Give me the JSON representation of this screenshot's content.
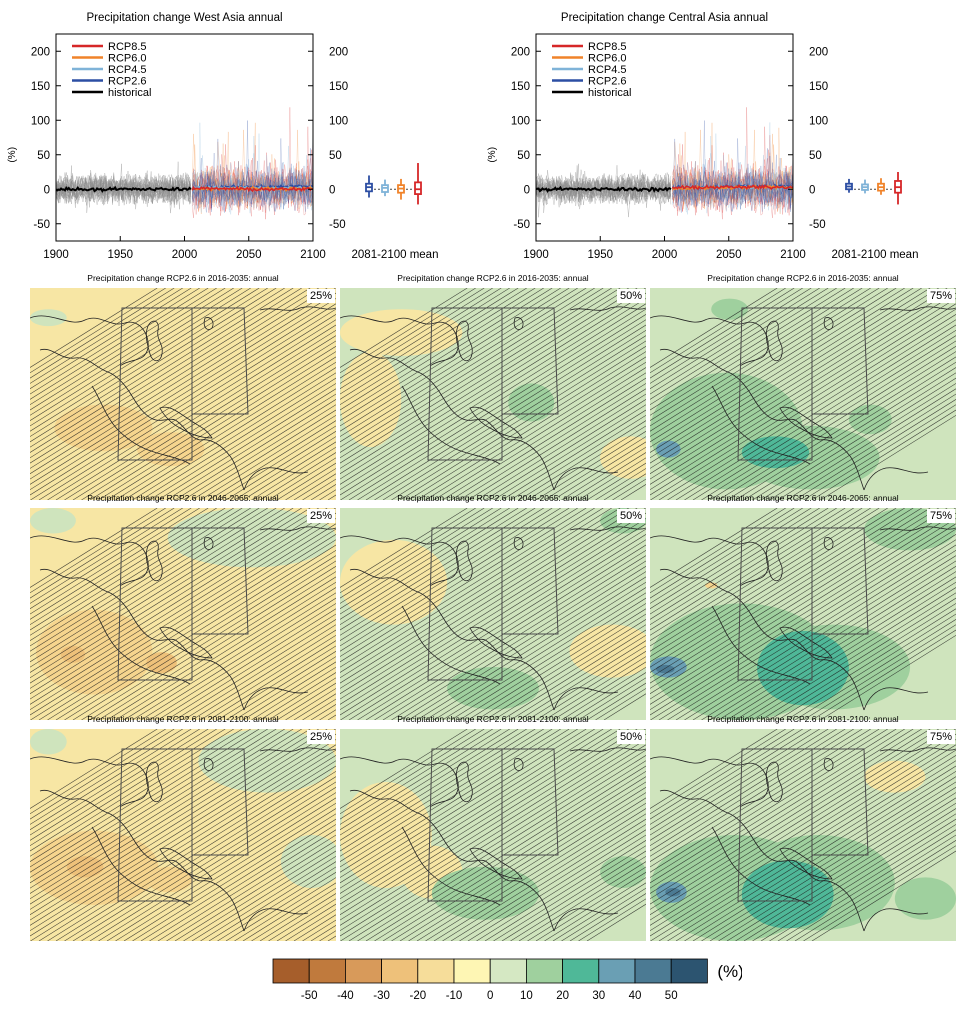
{
  "colors": {
    "RCP8.5": "#d62728",
    "RCP6.0": "#f0832a",
    "RCP4.5": "#7fb3d8",
    "RCP2.6": "#2c4ea3",
    "historical": "#000000",
    "ensemble_hist": "#8c8c8c",
    "border": "#4a4a4a"
  },
  "timeseries": [
    {
      "title": "Precipitation change West Asia annual",
      "ylabel": "(%)",
      "mean_label": "2081-2100 mean",
      "xticks": [
        "1900",
        "1950",
        "2000",
        "2050",
        "2100"
      ],
      "yticks_left": [
        "-50",
        "0",
        "50",
        "100",
        "150",
        "200"
      ],
      "yticks_right": [
        "-50",
        "0",
        "50",
        "100",
        "150",
        "200"
      ],
      "legend": [
        "RCP8.5",
        "RCP6.0",
        "RCP4.5",
        "RCP2.6",
        "historical"
      ],
      "boxes": [
        {
          "name": "RCP2.6",
          "min": -12,
          "q1": -3,
          "median": 3,
          "q3": 8,
          "max": 20
        },
        {
          "name": "RCP4.5",
          "min": -10,
          "q1": -4,
          "median": 2,
          "q3": 6,
          "max": 14
        },
        {
          "name": "RCP6.0",
          "min": -15,
          "q1": -5,
          "median": 1,
          "q3": 6,
          "max": 15
        },
        {
          "name": "RCP8.5",
          "min": -22,
          "q1": -7,
          "median": 0,
          "q3": 10,
          "max": 38
        }
      ]
    },
    {
      "title": "Precipitation change Central Asia annual",
      "ylabel": "(%)",
      "mean_label": "2081-2100 mean",
      "xticks": [
        "1900",
        "1950",
        "2000",
        "2050",
        "2100"
      ],
      "yticks_left": [
        "-50",
        "0",
        "50",
        "100",
        "150",
        "200"
      ],
      "yticks_right": [
        "-50",
        "0",
        "50",
        "100",
        "150",
        "200"
      ],
      "legend": [
        "RCP8.5",
        "RCP6.0",
        "RCP4.5",
        "RCP2.6",
        "historical"
      ],
      "boxes": [
        {
          "name": "RCP2.6",
          "min": -5,
          "q1": 0,
          "median": 4,
          "q3": 8,
          "max": 15
        },
        {
          "name": "RCP4.5",
          "min": -6,
          "q1": -1,
          "median": 3,
          "q3": 7,
          "max": 14
        },
        {
          "name": "RCP6.0",
          "min": -8,
          "q1": -2,
          "median": 3,
          "q3": 8,
          "max": 16
        },
        {
          "name": "RCP8.5",
          "min": -22,
          "q1": -5,
          "median": 3,
          "q3": 12,
          "max": 25
        }
      ]
    }
  ],
  "maps": [
    {
      "title": "Precipitation change RCP2.6 in 2016-2035: annual",
      "pct": "25%",
      "base": 2,
      "blobs": [
        [
          1,
          0.08,
          0.55,
          0.32,
          0.22
        ],
        [
          1,
          0.35,
          0.68,
          0.22,
          0.16
        ],
        [
          3,
          0.0,
          0.1,
          0.12,
          0.08
        ]
      ]
    },
    {
      "title": "Precipitation change RCP2.6 in 2016-2035: annual",
      "pct": "50%",
      "base": 3,
      "blobs": [
        [
          2,
          0.0,
          0.1,
          0.4,
          0.22
        ],
        [
          2,
          0.0,
          0.3,
          0.2,
          0.45
        ],
        [
          2,
          0.85,
          0.7,
          0.2,
          0.2
        ],
        [
          4,
          0.55,
          0.45,
          0.15,
          0.18
        ]
      ]
    },
    {
      "title": "Precipitation change RCP2.6 in 2016-2035: annual",
      "pct": "75%",
      "base": 3,
      "blobs": [
        [
          4,
          0.0,
          0.4,
          0.5,
          0.55
        ],
        [
          4,
          0.3,
          0.65,
          0.45,
          0.3
        ],
        [
          5,
          0.3,
          0.7,
          0.22,
          0.15
        ],
        [
          6,
          0.02,
          0.72,
          0.08,
          0.08
        ],
        [
          4,
          0.65,
          0.55,
          0.14,
          0.14
        ],
        [
          4,
          0.2,
          0.05,
          0.12,
          0.1
        ]
      ]
    },
    {
      "title": "Precipitation change RCP2.6 in 2046-2065: annual",
      "pct": "25%",
      "base": 2,
      "blobs": [
        [
          1,
          0.02,
          0.48,
          0.38,
          0.4
        ],
        [
          0,
          0.1,
          0.65,
          0.08,
          0.08
        ],
        [
          0,
          0.38,
          0.68,
          0.1,
          0.1
        ],
        [
          3,
          0.45,
          0.0,
          0.55,
          0.28
        ],
        [
          3,
          0.0,
          0.0,
          0.15,
          0.12
        ]
      ]
    },
    {
      "title": "Precipitation change RCP2.6 in 2046-2065: annual",
      "pct": "50%",
      "base": 3,
      "blobs": [
        [
          2,
          0.0,
          0.15,
          0.35,
          0.4
        ],
        [
          2,
          0.75,
          0.55,
          0.28,
          0.25
        ],
        [
          4,
          0.35,
          0.75,
          0.3,
          0.2
        ],
        [
          4,
          0.85,
          0.0,
          0.15,
          0.12
        ]
      ]
    },
    {
      "title": "Precipitation change RCP2.6 in 2046-2065: annual",
      "pct": "75%",
      "base": 3,
      "blobs": [
        [
          4,
          0.0,
          0.45,
          0.6,
          0.55
        ],
        [
          4,
          0.35,
          0.55,
          0.5,
          0.4
        ],
        [
          5,
          0.35,
          0.58,
          0.3,
          0.35
        ],
        [
          6,
          0.0,
          0.7,
          0.12,
          0.1
        ],
        [
          7,
          0.02,
          0.74,
          0.06,
          0.04
        ],
        [
          4,
          0.7,
          0.0,
          0.3,
          0.2
        ],
        [
          1,
          0.18,
          0.35,
          0.04,
          0.03
        ]
      ]
    },
    {
      "title": "Precipitation change RCP2.6 in 2081-2100: annual",
      "pct": "25%",
      "base": 2,
      "blobs": [
        [
          1,
          0.0,
          0.48,
          0.42,
          0.35
        ],
        [
          0,
          0.12,
          0.6,
          0.12,
          0.1
        ],
        [
          1,
          0.38,
          0.65,
          0.15,
          0.12
        ],
        [
          3,
          0.55,
          0.0,
          0.45,
          0.3
        ],
        [
          3,
          0.82,
          0.5,
          0.2,
          0.25
        ],
        [
          3,
          0.0,
          0.0,
          0.12,
          0.12
        ]
      ]
    },
    {
      "title": "Precipitation change RCP2.6 in 2081-2100: annual",
      "pct": "50%",
      "base": 3,
      "blobs": [
        [
          2,
          0.0,
          0.25,
          0.3,
          0.5
        ],
        [
          2,
          0.2,
          0.55,
          0.2,
          0.25
        ],
        [
          4,
          0.3,
          0.65,
          0.35,
          0.25
        ],
        [
          4,
          0.85,
          0.6,
          0.15,
          0.15
        ]
      ]
    },
    {
      "title": "Precipitation change RCP2.6 in 2081-2100: annual",
      "pct": "75%",
      "base": 3,
      "blobs": [
        [
          4,
          0.0,
          0.5,
          0.55,
          0.5
        ],
        [
          4,
          0.3,
          0.5,
          0.5,
          0.45
        ],
        [
          5,
          0.3,
          0.62,
          0.3,
          0.32
        ],
        [
          6,
          0.02,
          0.72,
          0.1,
          0.1
        ],
        [
          7,
          0.05,
          0.75,
          0.05,
          0.04
        ],
        [
          4,
          0.8,
          0.7,
          0.2,
          0.2
        ],
        [
          2,
          0.7,
          0.15,
          0.2,
          0.15
        ]
      ]
    }
  ],
  "colorbar": {
    "colors": [
      "#a65e2b",
      "#c07a3d",
      "#d89a5a",
      "#eec17a",
      "#f6dd9a",
      "#fef6b4",
      "#d5e8c3",
      "#9fd09e",
      "#4fb898",
      "#6a9fb4",
      "#4b7a93",
      "#2c5470"
    ],
    "labels": [
      "-50",
      "-40",
      "-30",
      "-20",
      "-10",
      "0",
      "10",
      "20",
      "30",
      "40",
      "50"
    ],
    "unit": "(%)"
  },
  "chart_data": [
    {
      "type": "line",
      "title": "Precipitation change West Asia annual",
      "ylabel": "(%)",
      "xlim": [
        1900,
        2100
      ],
      "ylim": [
        -75,
        225
      ],
      "series": [
        {
          "name": "historical",
          "x": [
            1900,
            1920,
            1940,
            1960,
            1980,
            2005
          ],
          "y": [
            0,
            0,
            0,
            0,
            0,
            0
          ]
        },
        {
          "name": "RCP2.6",
          "x": [
            2006,
            2030,
            2050,
            2070,
            2100
          ],
          "y": [
            2,
            3,
            3,
            4,
            4
          ]
        },
        {
          "name": "RCP4.5",
          "x": [
            2006,
            2030,
            2050,
            2070,
            2100
          ],
          "y": [
            2,
            2,
            2,
            2,
            2
          ]
        },
        {
          "name": "RCP6.0",
          "x": [
            2006,
            2030,
            2050,
            2070,
            2100
          ],
          "y": [
            1,
            1,
            1,
            1,
            1
          ]
        },
        {
          "name": "RCP8.5",
          "x": [
            2006,
            2030,
            2050,
            2070,
            2100
          ],
          "y": [
            1,
            1,
            0,
            0,
            0
          ]
        }
      ]
    },
    {
      "type": "line",
      "title": "Precipitation change Central Asia annual",
      "ylabel": "(%)",
      "xlim": [
        1900,
        2100
      ],
      "ylim": [
        -75,
        225
      ],
      "series": [
        {
          "name": "historical",
          "x": [
            1900,
            1920,
            1940,
            1960,
            1980,
            2005
          ],
          "y": [
            0,
            0,
            0,
            0,
            0,
            0
          ]
        },
        {
          "name": "RCP2.6",
          "x": [
            2006,
            2030,
            2050,
            2070,
            2100
          ],
          "y": [
            2,
            3,
            4,
            4,
            4
          ]
        },
        {
          "name": "RCP4.5",
          "x": [
            2006,
            2030,
            2050,
            2070,
            2100
          ],
          "y": [
            2,
            3,
            3,
            3,
            3
          ]
        },
        {
          "name": "RCP6.0",
          "x": [
            2006,
            2030,
            2050,
            2070,
            2100
          ],
          "y": [
            1,
            2,
            3,
            3,
            3
          ]
        },
        {
          "name": "RCP8.5",
          "x": [
            2006,
            2030,
            2050,
            2070,
            2100
          ],
          "y": [
            2,
            3,
            3,
            3,
            3
          ]
        }
      ]
    }
  ]
}
